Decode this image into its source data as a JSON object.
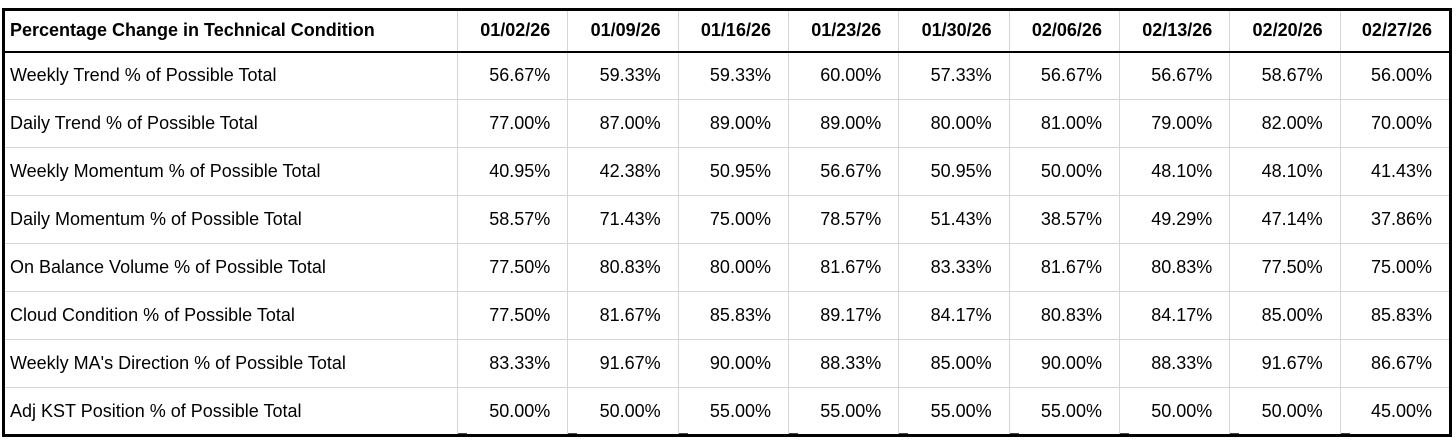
{
  "colors": {
    "outer_border": "#000000",
    "grid_line": "#d6d6d6",
    "text": "#000000",
    "background": "#ffffff",
    "corner_mark_green": "#2e5e1f"
  },
  "chart_data": {
    "type": "table",
    "title": "Percentage Change in Technical Condition",
    "columns": [
      "01/02/26",
      "01/09/26",
      "01/16/26",
      "01/23/26",
      "01/30/26",
      "02/06/26",
      "02/13/26",
      "02/20/26",
      "02/27/26"
    ],
    "rows": [
      {
        "label": "Weekly Trend % of Possible Total",
        "values": [
          "56.67%",
          "59.33%",
          "59.33%",
          "60.00%",
          "57.33%",
          "56.67%",
          "56.67%",
          "58.67%",
          "56.00%"
        ]
      },
      {
        "label": "Daily Trend % of Possible Total",
        "values": [
          "77.00%",
          "87.00%",
          "89.00%",
          "89.00%",
          "80.00%",
          "81.00%",
          "79.00%",
          "82.00%",
          "70.00%"
        ]
      },
      {
        "label": "Weekly Momentum % of Possible Total",
        "values": [
          "40.95%",
          "42.38%",
          "50.95%",
          "56.67%",
          "50.95%",
          "50.00%",
          "48.10%",
          "48.10%",
          "41.43%"
        ]
      },
      {
        "label": "Daily Momentum % of Possible Total",
        "values": [
          "58.57%",
          "71.43%",
          "75.00%",
          "78.57%",
          "51.43%",
          "38.57%",
          "49.29%",
          "47.14%",
          "37.86%"
        ]
      },
      {
        "label": "On Balance Volume % of Possible Total",
        "values": [
          "77.50%",
          "80.83%",
          "80.00%",
          "81.67%",
          "83.33%",
          "81.67%",
          "80.83%",
          "77.50%",
          "75.00%"
        ]
      },
      {
        "label": "Cloud Condition % of Possible Total",
        "values": [
          "77.50%",
          "81.67%",
          "85.83%",
          "89.17%",
          "84.17%",
          "80.83%",
          "84.17%",
          "85.00%",
          "85.83%"
        ]
      },
      {
        "label": "Weekly MA's Direction % of Possible Total",
        "values": [
          "83.33%",
          "91.67%",
          "90.00%",
          "88.33%",
          "85.00%",
          "90.00%",
          "88.33%",
          "91.67%",
          "86.67%"
        ]
      },
      {
        "label": "Adj KST Position % of Possible Total",
        "values": [
          "50.00%",
          "50.00%",
          "55.00%",
          "55.00%",
          "55.00%",
          "55.00%",
          "50.00%",
          "50.00%",
          "45.00%"
        ]
      }
    ]
  }
}
